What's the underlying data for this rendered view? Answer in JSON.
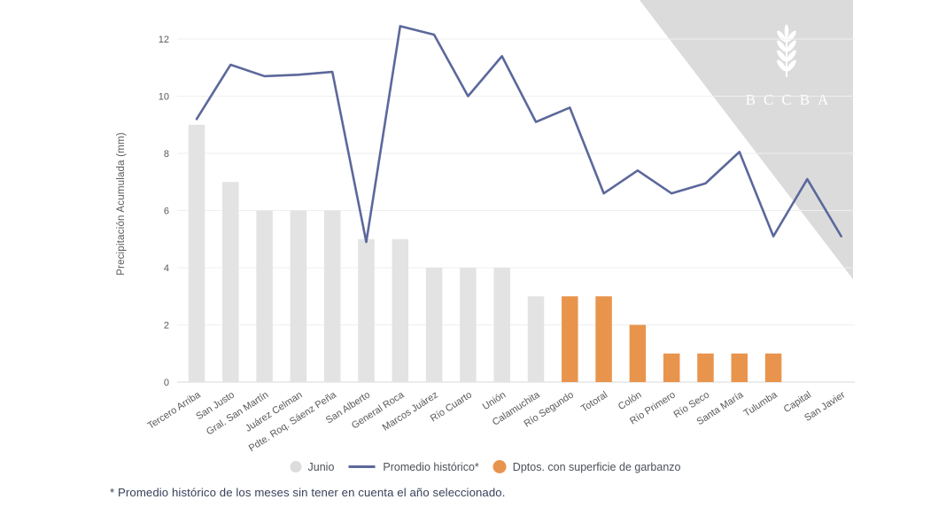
{
  "watermark": {
    "text": "BCCBA",
    "icon": "wheat-spike-icon",
    "bg_color": "#dbdbdc",
    "fg_color": "#ffffff"
  },
  "legend": {
    "items": [
      {
        "label": "Junio",
        "swatch": "circle",
        "color": "#dcdcdc"
      },
      {
        "label": "Promedio histórico*",
        "swatch": "line",
        "color": "#5c689b"
      },
      {
        "label": "Dptos. con superficie de garbanzo",
        "swatch": "circle",
        "color": "#e9944d"
      }
    ]
  },
  "footnote": "* Promedio histórico de los meses sin tener en cuenta el año seleccionado.",
  "chart_data": {
    "type": "bar+line",
    "ylabel": "Precipitación Acumulada (mm)",
    "ylim": [
      0,
      12
    ],
    "yticks": [
      0,
      2,
      4,
      6,
      8,
      10,
      12
    ],
    "grid": "horizontal",
    "legend_position": "bottom",
    "categories": [
      "Tercero Arriba",
      "San Justo",
      "Gral. San Martín",
      "Juárez Celman",
      "Pdte. Roq. Sáenz Peña",
      "San Alberto",
      "General Roca",
      "Marcos Juárez",
      "Río Cuarto",
      "Unión",
      "Calamuchita",
      "Río Segundo",
      "Totoral",
      "Colón",
      "Río Primero",
      "Río Seco",
      "Santa María",
      "Tulumba",
      "Capital",
      "San Javier"
    ],
    "series": [
      {
        "name": "Junio",
        "type": "bar",
        "values": [
          9,
          7,
          6,
          6,
          6,
          5,
          5,
          4,
          4,
          4,
          3,
          3,
          3,
          2,
          1,
          1,
          1,
          1,
          0,
          0
        ]
      },
      {
        "name": "Promedio histórico*",
        "type": "line",
        "values": [
          9.2,
          11.1,
          10.7,
          10.75,
          10.85,
          4.9,
          12.45,
          12.15,
          10.0,
          11.4,
          9.1,
          9.6,
          6.6,
          7.4,
          6.6,
          6.95,
          8.05,
          5.1,
          7.1,
          5.1
        ]
      }
    ],
    "highlight": {
      "label": "Dptos. con superficie de garbanzo",
      "categories": [
        "Río Segundo",
        "Totoral",
        "Colón",
        "Río Primero",
        "Río Seco",
        "Santa María",
        "Tulumba"
      ]
    },
    "colors": {
      "bar": "#e3e3e4",
      "bar_highlight": "#e9944d",
      "line": "#5c689b",
      "grid": "#efefef",
      "axis_line": "#d8d8d8",
      "tick_text": "#595959"
    }
  }
}
